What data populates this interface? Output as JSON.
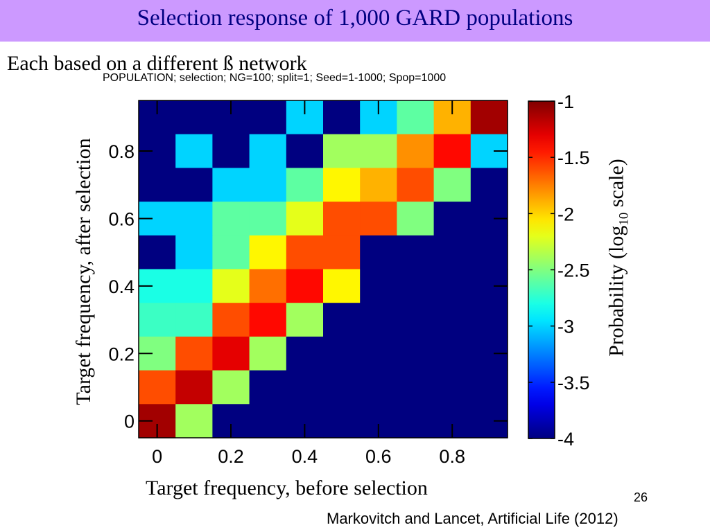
{
  "slide": {
    "title": "Selection response of 1,000 GARD populations",
    "subtitle": "Each based on a different ß network",
    "page_number": "26",
    "citation": "Markovitch and Lancet, Artificial Life (2012)"
  },
  "colors": {
    "title_bar": "#cc99ff",
    "title_text": "#000080"
  },
  "chart_data": {
    "type": "heatmap",
    "title": "POPULATION; selection; NG=100; split=1; Seed=1-1000; Spop=1000",
    "xlabel": "Target frequency, before selection",
    "ylabel": "Target frequency, after selection",
    "colorbar_label": {
      "text": "Probability (log",
      "sub": "10",
      "tail": " scale)"
    },
    "x_ticks": [
      "0",
      "0.2",
      "0.4",
      "0.6",
      "0.8"
    ],
    "y_ticks": [
      "0",
      "0.2",
      "0.4",
      "0.6",
      "0.8"
    ],
    "colorbar_ticks": [
      "-1",
      "-1.5",
      "-2",
      "-2.5",
      "-3",
      "-3.5",
      "-4"
    ],
    "xlim": [
      -0.05,
      0.95
    ],
    "ylim": [
      -0.05,
      0.95
    ],
    "clim": [
      -4,
      -1
    ],
    "grid": false,
    "bins_x": [
      0,
      0.1,
      0.2,
      0.3,
      0.4,
      0.5,
      0.6,
      0.7,
      0.8,
      0.9
    ],
    "bins_y": [
      0,
      0.1,
      0.2,
      0.3,
      0.4,
      0.5,
      0.6,
      0.7,
      0.8,
      0.9
    ],
    "z_rows_top_to_bottom": [
      [
        -4,
        -4,
        -4,
        -4,
        -3,
        -4,
        -3,
        -2.6,
        -1.9,
        -1.1
      ],
      [
        -4,
        -3,
        -4,
        -3,
        -4,
        -2.4,
        -2.4,
        -1.8,
        -1.4,
        -3
      ],
      [
        -4,
        -4,
        -3,
        -3,
        -2.6,
        -2.1,
        -1.9,
        -1.6,
        -2.5,
        -4
      ],
      [
        -3,
        -3,
        -2.6,
        -2.6,
        -2.2,
        -1.6,
        -1.6,
        -2.5,
        -4,
        -4
      ],
      [
        -4,
        -3,
        -2.6,
        -2.1,
        -1.6,
        -1.6,
        -4,
        -4,
        -4,
        -4
      ],
      [
        -2.8,
        -2.8,
        -2.2,
        -1.7,
        -1.4,
        -2.1,
        -4,
        -4,
        -4,
        -4
      ],
      [
        -2.7,
        -2.7,
        -1.6,
        -1.4,
        -2.4,
        -4,
        -4,
        -4,
        -4,
        -4
      ],
      [
        -2.5,
        -1.6,
        -1.3,
        -2.4,
        -4,
        -4,
        -4,
        -4,
        -4,
        -4
      ],
      [
        -1.6,
        -1.2,
        -2.4,
        -4,
        -4,
        -4,
        -4,
        -4,
        -4,
        -4
      ],
      [
        -1.1,
        -2.4,
        -4,
        -4,
        -4,
        -4,
        -4,
        -4,
        -4,
        -4
      ]
    ]
  }
}
